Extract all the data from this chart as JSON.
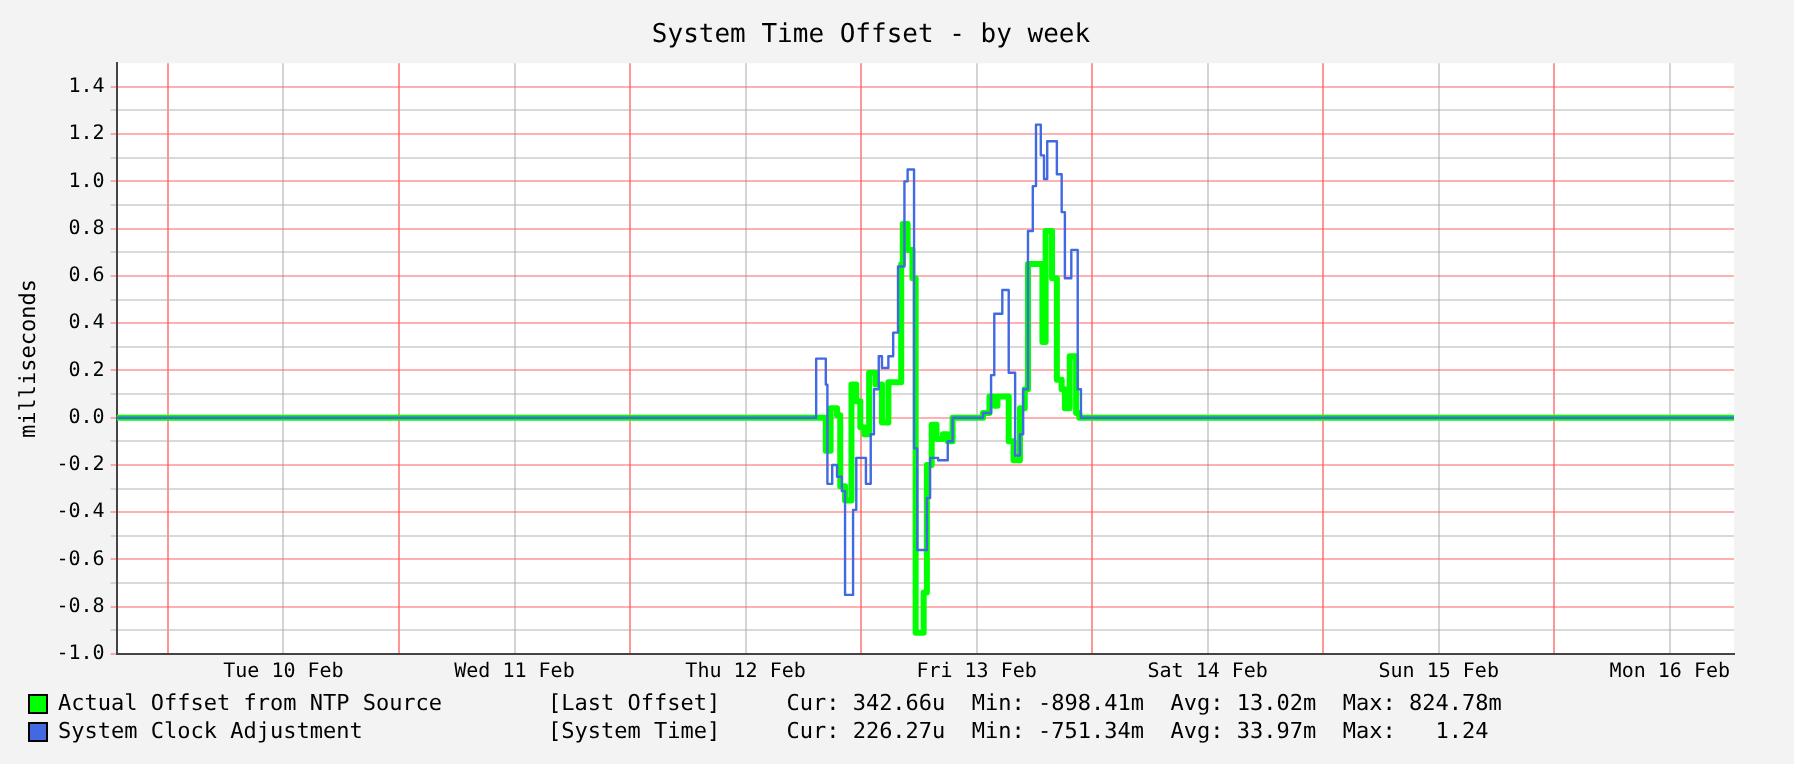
{
  "chart_data": {
    "type": "step",
    "title": "System Time Offset - by week",
    "ylabel": "milliseconds",
    "xlim": [
      "--02-09T18:40",
      "--02-16T18:40"
    ],
    "xticks": [
      {
        "value": "--02-10T00:00",
        "label": null
      },
      {
        "value": "--02-10T12:00",
        "label": "Tue 10 Feb"
      },
      {
        "value": "--02-11T00:00",
        "label": null
      },
      {
        "value": "--02-11T12:00",
        "label": "Wed 11 Feb"
      },
      {
        "value": "--02-12T00:00",
        "label": null
      },
      {
        "value": "--02-12T12:00",
        "label": "Thu 12 Feb"
      },
      {
        "value": "--02-13T00:00",
        "label": null
      },
      {
        "value": "--02-13T12:00",
        "label": "Fri 13 Feb"
      },
      {
        "value": "--02-14T00:00",
        "label": null
      },
      {
        "value": "--02-14T12:00",
        "label": "Sat 14 Feb"
      },
      {
        "value": "--02-15T00:00",
        "label": null
      },
      {
        "value": "--02-15T12:00",
        "label": "Sun 15 Feb"
      },
      {
        "value": "--02-16T00:00",
        "label": null
      },
      {
        "value": "--02-16T12:00",
        "label": "Mon 16 Feb"
      }
    ],
    "ylim": [
      -1.0,
      1.5
    ],
    "yticks": [
      {
        "value": -1.0,
        "label": "-1.0"
      },
      {
        "value": -0.9,
        "label": null
      },
      {
        "value": -0.8,
        "label": "-0.8"
      },
      {
        "value": -0.7,
        "label": null
      },
      {
        "value": -0.6,
        "label": "-0.6"
      },
      {
        "value": -0.5,
        "label": null
      },
      {
        "value": -0.4,
        "label": "-0.4"
      },
      {
        "value": -0.3,
        "label": null
      },
      {
        "value": -0.2,
        "label": "-0.2"
      },
      {
        "value": -0.1,
        "label": null
      },
      {
        "value": 0,
        "label": "0.0"
      },
      {
        "value": 0.1,
        "label": null
      },
      {
        "value": 0.2,
        "label": "0.2"
      },
      {
        "value": 0.3,
        "label": null
      },
      {
        "value": 0.4,
        "label": "0.4"
      },
      {
        "value": 0.5,
        "label": null
      },
      {
        "value": 0.6,
        "label": "0.6"
      },
      {
        "value": 0.7,
        "label": null
      },
      {
        "value": 0.8,
        "label": "0.8"
      },
      {
        "value": 0.9,
        "label": null
      },
      {
        "value": 1.0,
        "label": "1.0"
      },
      {
        "value": 1.1,
        "label": null
      },
      {
        "value": 1.2,
        "label": "1.2"
      },
      {
        "value": 1.3,
        "label": null
      },
      {
        "value": 1.4,
        "label": "1.4"
      }
    ],
    "grid": true,
    "legend": "bottom",
    "marker": "none",
    "line_style": "solid",
    "annotations": [
      "[Last Offset]     Cur: 342.66u  Min: -898.41m  Avg: 13.02m  Max: 824.78m",
      "[System Time]     Cur: 226.27u  Min: -751.34m  Avg: 33.97m  Max:   1.24"
    ],
    "series": [
      {
        "name": "Actual Offset from NTP Source",
        "color": "#00ff00",
        "x": [
          "--02-09T18:40",
          "--02-12T20:20",
          "--02-12T20:50",
          "--02-12T21:30",
          "--02-12T21:50",
          "--02-12T22:20",
          "--02-12T23:00",
          "--02-12T23:30",
          "--02-12T23:55",
          "--02-13T00:20",
          "--02-13T00:50",
          "--02-13T01:30",
          "--02-13T02:10",
          "--02-13T02:50",
          "--02-13T04:10",
          "--02-13T04:20",
          "--02-13T04:50",
          "--02-13T05:20",
          "--02-13T05:40",
          "--02-13T06:30",
          "--02-13T06:50",
          "--02-13T07:20",
          "--02-13T07:50",
          "--02-13T08:30",
          "--02-13T09:00",
          "--02-13T09:30",
          "--02-13T12:40",
          "--02-13T13:20",
          "--02-13T13:50",
          "--02-13T14:10",
          "--02-13T15:20",
          "--02-13T15:50",
          "--02-13T16:30",
          "--02-13T17:00",
          "--02-13T17:20",
          "--02-13T18:50",
          "--02-13T19:10",
          "--02-13T19:50",
          "--02-13T20:20",
          "--02-13T20:50",
          "--02-13T21:10",
          "--02-13T21:40",
          "--02-13T22:20",
          "--02-13T22:40",
          "--02-16T18:40"
        ],
        "values": [
          0,
          0,
          -0.14,
          0.04,
          0.01,
          -0.29,
          -0.35,
          0.14,
          0.07,
          -0.04,
          -0.07,
          0.19,
          0.14,
          -0.02,
          0.15,
          0.65,
          0.82,
          0.71,
          0.59,
          -0.91,
          -0.74,
          -0.2,
          -0.03,
          -0.09,
          -0.07,
          -0.1,
          0,
          0.02,
          0.09,
          0.05,
          0.09,
          -0.1,
          -0.18,
          0.04,
          0.12,
          0.65,
          0.32,
          0.79,
          0.59,
          0.16,
          0.12,
          0.04,
          0.26,
          0.02,
          0
        ]
      },
      {
        "name": "System Clock Adjustment",
        "color": "#4169e1",
        "x": [
          "--02-09T18:40",
          "--02-12T19:20",
          "--02-12T20:20",
          "--02-12T20:30",
          "--02-12T21:00",
          "--02-12T21:30",
          "--02-12T22:00",
          "--02-12T22:20",
          "--02-12T23:10",
          "--02-12T23:30",
          "--02-13T00:30",
          "--02-13T01:00",
          "--02-13T01:20",
          "--02-13T01:50",
          "--02-13T02:10",
          "--02-13T02:50",
          "--02-13T03:20",
          "--02-13T03:50",
          "--02-13T04:30",
          "--02-13T04:50",
          "--02-13T05:30",
          "--02-13T05:50",
          "--02-13T06:50",
          "--02-13T07:10",
          "--02-13T08:00",
          "--02-13T09:00",
          "--02-13T09:30",
          "--02-13T12:40",
          "--02-13T13:30",
          "--02-13T13:50",
          "--02-13T14:40",
          "--02-13T15:20",
          "--02-13T16:00",
          "--02-13T16:30",
          "--02-13T16:50",
          "--02-13T17:20",
          "--02-13T17:50",
          "--02-13T18:10",
          "--02-13T18:40",
          "--02-13T19:00",
          "--02-13T19:20",
          "--02-13T20:20",
          "--02-13T20:50",
          "--02-13T21:10",
          "--02-13T21:50",
          "--02-13T22:30",
          "--02-13T22:50",
          "--02-16T18:40"
        ],
        "values": [
          0,
          0,
          0.25,
          0.14,
          -0.28,
          -0.2,
          -0.25,
          -0.31,
          -0.75,
          -0.39,
          -0.17,
          -0.28,
          -0.07,
          0.12,
          0.26,
          0.21,
          0.26,
          0.36,
          0.64,
          1.0,
          1.05,
          -0.13,
          -0.56,
          -0.34,
          -0.17,
          -0.18,
          -0.1,
          0,
          0.02,
          0.18,
          0.44,
          0.54,
          0.19,
          -0.16,
          -0.07,
          0.12,
          0.79,
          0.98,
          1.24,
          1.11,
          1.01,
          1.17,
          1.03,
          0.87,
          0.59,
          0.71,
          0.12,
          0
        ]
      }
    ]
  }
}
